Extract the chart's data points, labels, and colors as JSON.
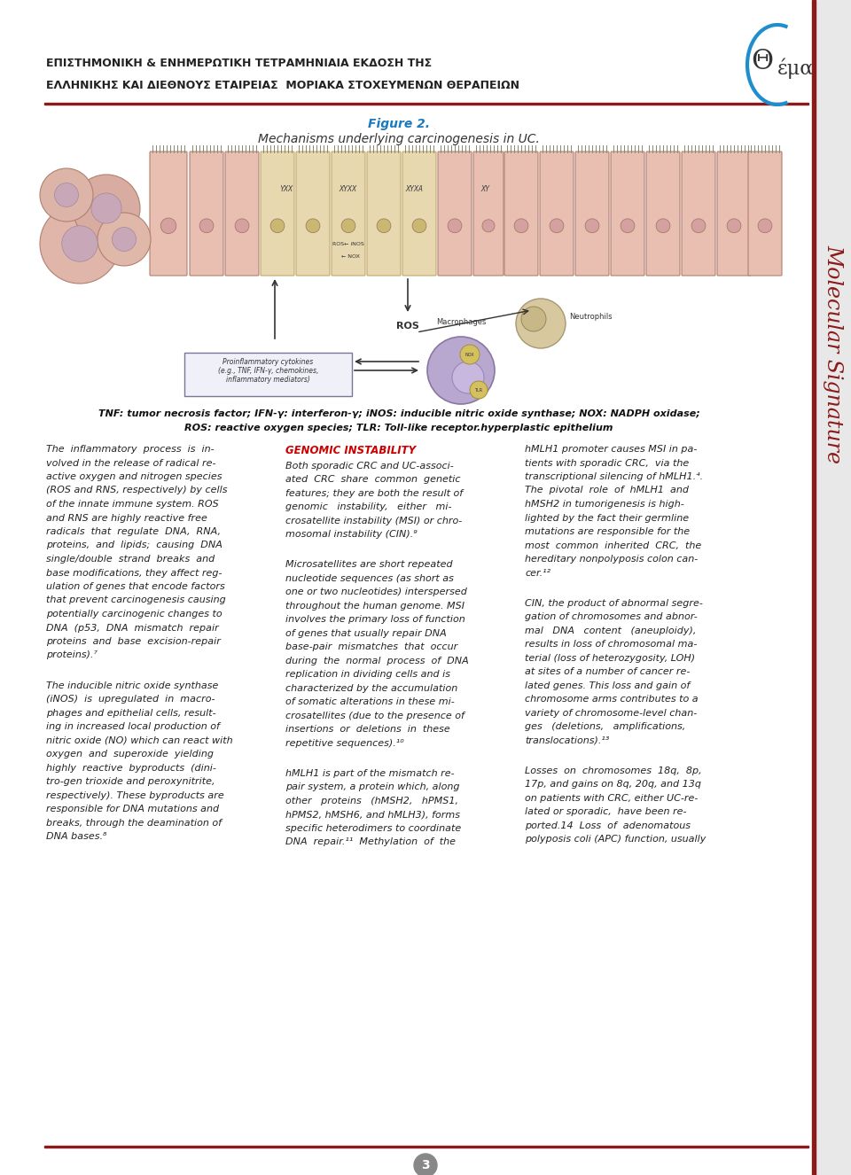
{
  "page_bg": "#ffffff",
  "header_line_color": "#8B1A1A",
  "header_text_line1": "ΕΠΙΣΤΗΜΟΝΙΚΗ & ΕΝΗΜΕΡΩΤΙΚΗ ΤΕΤΡΑΜΗΝΙΑΙΑ ΕΚΔΟΣΗ ΤΗΣ",
  "header_text_line2": "ΕΛΛΗΝΙΚΗΣ ΚΑΙ ΔΙΕΘΝΟΥΣ ΕΤΑΙΡΕΙΑΣ  ΜΟΡΙΑΚΑ ΣΤΟΧΕΥΜΕΝΩΝ ΘΕΡΑΠΕΙΩΝ",
  "sidebar_bg": "#f0f0f0",
  "sidebar_text_color": "#8B1A1A",
  "sidebar_text": "Molecular Signature",
  "theta_circle_color": "#1E90FF",
  "figure_caption_title": "Figure 2.",
  "figure_caption_sub": "Mechanisms underlying carcinogenesis in UC.",
  "figure_note_line1": "TNF: tumor necrosis factor; IFN-γ: interferon-γ; iNOS: inducible nitric oxide synthase; NOX: NADPH oxidase;",
  "figure_note_line2": "ROS: reactive oxygen species; TLR: Toll-like receptor.hyperplastic epithelium",
  "col1_lines": [
    "The  inflammatory  process  is  in-",
    "volved in the release of radical re-",
    "active oxygen and nitrogen species",
    "(ROS and RNS, respectively) by cells",
    "of the innate immune system. ROS",
    "and RNS are highly reactive free",
    "radicals  that  regulate  DNA,  RNA,",
    "proteins,  and  lipids;  causing  DNA",
    "single/double  strand  breaks  and",
    "base modifications, they affect reg-",
    "ulation of genes that encode factors",
    "that prevent carcinogenesis causing",
    "potentially carcinogenic changes to",
    "DNA  (p53,  DNA  mismatch  repair",
    "proteins  and  base  excision-repair",
    "proteins).⁷"
  ],
  "col1_lines2": [
    "The inducible nitric oxide synthase",
    "(iNOS)  is  upregulated  in  macro-",
    "phages and epithelial cells, result-",
    "ing in increased local production of",
    "nitric oxide (NO) which can react with",
    "oxygen  and  superoxide  yielding",
    "highly  reactive  byproducts  (dini-",
    "tro­gen trioxide and peroxynitrite,",
    "respectively). These byproducts are",
    "responsible for DNA mutations and",
    "breaks, through the deamination of",
    "DNA bases.⁸"
  ],
  "col2_heading": "GENOMIC INSTABILITY",
  "col2_lines1": [
    "Both sporadic CRC and UC-associ-",
    "ated  CRC  share  common  genetic",
    "features; they are both the result of",
    "genomic   instability,   either   mi-",
    "crosatellite instability (MSI) or chro-",
    "mosomal instability (CIN).⁹"
  ],
  "col2_lines2": [
    "Microsatellites are short repeated",
    "nucleotide sequences (as short as",
    "one or two nucleotides) interspersed",
    "throughout the human genome. MSI",
    "involves the primary loss of function",
    "of genes that usually repair DNA",
    "base-pair  mismatches  that  occur",
    "during  the  normal  process  of  DNA",
    "replication in dividing cells and is",
    "characterized by the accumulation",
    "of somatic alterations in these mi-",
    "crosatellites (due to the presence of",
    "insertions  or  deletions  in  these",
    "repetitive sequences).¹⁰"
  ],
  "col2_lines3": [
    "hMLH1 is part of the mismatch re-",
    "pair system, a protein which, along",
    "other   proteins   (hMSH2,   hPMS1,",
    "hPMS2, hMSH6, and hMLH3), forms",
    "specific heterodimers to coordinate",
    "DNA  repair.¹¹  Methylation  of  the"
  ],
  "col3_lines1": [
    "hMLH1 promoter causes MSI in pa-",
    "tients with sporadic CRC,  via the",
    "transcriptional silencing of hMLH1.⁴.",
    "The  pivotal  role  of  hMLH1  and",
    "hMSH2 in tumorigenesis is high-",
    "lighted by the fact their germline",
    "mutations are responsible for the",
    "most  common  inherited  CRC,  the",
    "hereditary nonpolyposis colon can-",
    "cer.¹²"
  ],
  "col3_lines2": [
    "CIN, the product of abnormal segre-",
    "gation of chromosomes and abnor-",
    "mal   DNA   content   (aneuploidy),",
    "results in loss of chromosomal ma-",
    "terial (loss of heterozygosity, LOH)",
    "at sites of a number of cancer re-",
    "lated genes. This loss and gain of",
    "chromosome arms contributes to a",
    "variety of chromosome-level chan-",
    "ges   (deletions,   amplifications,",
    "translocations).¹³"
  ],
  "col3_lines3": [
    "Losses  on  chromosomes  18q,  8p,",
    "17p, and gains on 8q, 20q, and 13q",
    "on patients with CRC, either UC-re-",
    "lated or sporadic,  have been re-",
    "ported.14  Loss  of  adenomatous",
    "polyposis coli (APC) function, usually"
  ],
  "page_number": "3"
}
